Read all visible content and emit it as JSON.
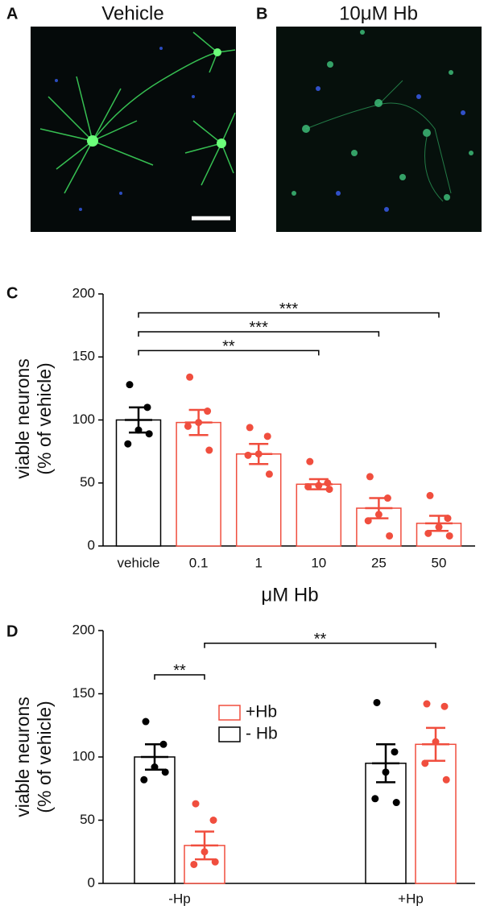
{
  "panels": [
    {
      "letter": "A",
      "title": "Vehicle"
    },
    {
      "letter": "B",
      "title": "10μM Hb"
    }
  ],
  "chart_data": [
    {
      "type": "bar",
      "panel": "C",
      "ylabel": [
        "viable neurons",
        "(% of vehicle)"
      ],
      "xlabel": "μM Hb",
      "categories": [
        "vehicle",
        "0.1",
        "1",
        "10",
        "25",
        "50"
      ],
      "values": [
        100,
        98,
        73,
        49,
        30,
        18
      ],
      "errors": [
        10,
        10,
        8,
        4,
        8,
        6
      ],
      "points": [
        [
          128,
          110,
          92,
          81,
          89
        ],
        [
          134,
          107,
          98,
          95,
          76
        ],
        [
          94,
          87,
          73,
          72,
          57
        ],
        [
          67,
          50,
          48,
          47,
          45
        ],
        [
          55,
          38,
          25,
          20,
          8
        ],
        [
          40,
          22,
          15,
          10,
          8
        ]
      ],
      "colors": [
        "#000000",
        "#f04e3e",
        "#f04e3e",
        "#f04e3e",
        "#f04e3e",
        "#f04e3e"
      ],
      "ylim": [
        0,
        200
      ],
      "yticks": [
        0,
        50,
        100,
        150,
        200
      ],
      "brackets": [
        {
          "from": "vehicle",
          "to": "10",
          "label": "**",
          "y": 155
        },
        {
          "from": "vehicle",
          "to": "25",
          "label": "***",
          "y": 170
        },
        {
          "from": "vehicle",
          "to": "50",
          "label": "***",
          "y": 185
        }
      ]
    },
    {
      "type": "grouped_bar",
      "panel": "D",
      "ylabel": [
        "viable neurons",
        "(% of vehicle)"
      ],
      "categories": [
        "-Hp",
        "+Hp"
      ],
      "series": [
        {
          "name": "- Hb",
          "color": "#000000",
          "values": [
            100,
            95
          ],
          "errors": [
            10,
            15
          ],
          "points": [
            [
              128,
              110,
              92,
              82,
              88
            ],
            [
              143,
              104,
              88,
              67,
              64
            ]
          ]
        },
        {
          "name": "+Hb",
          "color": "#f04e3e",
          "values": [
            30,
            110
          ],
          "errors": [
            11,
            13
          ],
          "points": [
            [
              63,
              50,
              25,
              15,
              17
            ],
            [
              142,
              140,
              112,
              95,
              82
            ]
          ]
        }
      ],
      "ylim": [
        0,
        200
      ],
      "yticks": [
        0,
        50,
        100,
        150,
        200
      ],
      "brackets": [
        {
          "from": {
            "series": "- Hb",
            "category": "-Hp"
          },
          "to": {
            "series": "+Hb",
            "category": "-Hp"
          },
          "label": "**",
          "y": 165
        },
        {
          "from": {
            "series": "+Hb",
            "category": "-Hp"
          },
          "to": {
            "series": "+Hb",
            "category": "+Hp"
          },
          "label": "**",
          "y": 190
        }
      ]
    }
  ]
}
